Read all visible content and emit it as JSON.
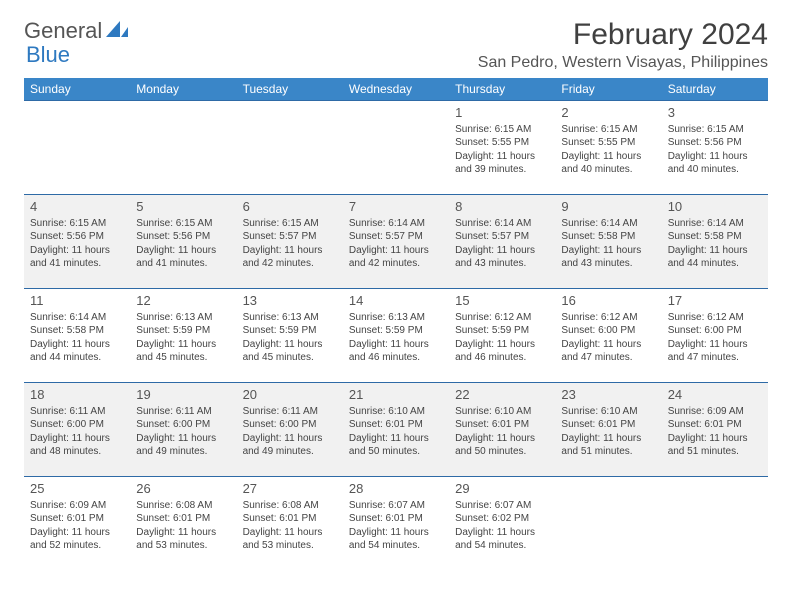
{
  "logo": {
    "part1": "General",
    "part2": "Blue",
    "color1": "#555555",
    "color2": "#2e79c0"
  },
  "title": "February 2024",
  "location": "San Pedro, Western Visayas, Philippines",
  "colors": {
    "header_bg": "#3a86c8",
    "header_text": "#ffffff",
    "row_border": "#2e6aa6",
    "alt_row_bg": "#f1f1f1",
    "text": "#444444"
  },
  "day_headers": [
    "Sunday",
    "Monday",
    "Tuesday",
    "Wednesday",
    "Thursday",
    "Friday",
    "Saturday"
  ],
  "weeks": [
    {
      "alt": false,
      "cells": [
        null,
        null,
        null,
        null,
        {
          "day": "1",
          "sunrise": "6:15 AM",
          "sunset": "5:55 PM",
          "daylight": "11 hours and 39 minutes."
        },
        {
          "day": "2",
          "sunrise": "6:15 AM",
          "sunset": "5:55 PM",
          "daylight": "11 hours and 40 minutes."
        },
        {
          "day": "3",
          "sunrise": "6:15 AM",
          "sunset": "5:56 PM",
          "daylight": "11 hours and 40 minutes."
        }
      ]
    },
    {
      "alt": true,
      "cells": [
        {
          "day": "4",
          "sunrise": "6:15 AM",
          "sunset": "5:56 PM",
          "daylight": "11 hours and 41 minutes."
        },
        {
          "day": "5",
          "sunrise": "6:15 AM",
          "sunset": "5:56 PM",
          "daylight": "11 hours and 41 minutes."
        },
        {
          "day": "6",
          "sunrise": "6:15 AM",
          "sunset": "5:57 PM",
          "daylight": "11 hours and 42 minutes."
        },
        {
          "day": "7",
          "sunrise": "6:14 AM",
          "sunset": "5:57 PM",
          "daylight": "11 hours and 42 minutes."
        },
        {
          "day": "8",
          "sunrise": "6:14 AM",
          "sunset": "5:57 PM",
          "daylight": "11 hours and 43 minutes."
        },
        {
          "day": "9",
          "sunrise": "6:14 AM",
          "sunset": "5:58 PM",
          "daylight": "11 hours and 43 minutes."
        },
        {
          "day": "10",
          "sunrise": "6:14 AM",
          "sunset": "5:58 PM",
          "daylight": "11 hours and 44 minutes."
        }
      ]
    },
    {
      "alt": false,
      "cells": [
        {
          "day": "11",
          "sunrise": "6:14 AM",
          "sunset": "5:58 PM",
          "daylight": "11 hours and 44 minutes."
        },
        {
          "day": "12",
          "sunrise": "6:13 AM",
          "sunset": "5:59 PM",
          "daylight": "11 hours and 45 minutes."
        },
        {
          "day": "13",
          "sunrise": "6:13 AM",
          "sunset": "5:59 PM",
          "daylight": "11 hours and 45 minutes."
        },
        {
          "day": "14",
          "sunrise": "6:13 AM",
          "sunset": "5:59 PM",
          "daylight": "11 hours and 46 minutes."
        },
        {
          "day": "15",
          "sunrise": "6:12 AM",
          "sunset": "5:59 PM",
          "daylight": "11 hours and 46 minutes."
        },
        {
          "day": "16",
          "sunrise": "6:12 AM",
          "sunset": "6:00 PM",
          "daylight": "11 hours and 47 minutes."
        },
        {
          "day": "17",
          "sunrise": "6:12 AM",
          "sunset": "6:00 PM",
          "daylight": "11 hours and 47 minutes."
        }
      ]
    },
    {
      "alt": true,
      "cells": [
        {
          "day": "18",
          "sunrise": "6:11 AM",
          "sunset": "6:00 PM",
          "daylight": "11 hours and 48 minutes."
        },
        {
          "day": "19",
          "sunrise": "6:11 AM",
          "sunset": "6:00 PM",
          "daylight": "11 hours and 49 minutes."
        },
        {
          "day": "20",
          "sunrise": "6:11 AM",
          "sunset": "6:00 PM",
          "daylight": "11 hours and 49 minutes."
        },
        {
          "day": "21",
          "sunrise": "6:10 AM",
          "sunset": "6:01 PM",
          "daylight": "11 hours and 50 minutes."
        },
        {
          "day": "22",
          "sunrise": "6:10 AM",
          "sunset": "6:01 PM",
          "daylight": "11 hours and 50 minutes."
        },
        {
          "day": "23",
          "sunrise": "6:10 AM",
          "sunset": "6:01 PM",
          "daylight": "11 hours and 51 minutes."
        },
        {
          "day": "24",
          "sunrise": "6:09 AM",
          "sunset": "6:01 PM",
          "daylight": "11 hours and 51 minutes."
        }
      ]
    },
    {
      "alt": false,
      "cells": [
        {
          "day": "25",
          "sunrise": "6:09 AM",
          "sunset": "6:01 PM",
          "daylight": "11 hours and 52 minutes."
        },
        {
          "day": "26",
          "sunrise": "6:08 AM",
          "sunset": "6:01 PM",
          "daylight": "11 hours and 53 minutes."
        },
        {
          "day": "27",
          "sunrise": "6:08 AM",
          "sunset": "6:01 PM",
          "daylight": "11 hours and 53 minutes."
        },
        {
          "day": "28",
          "sunrise": "6:07 AM",
          "sunset": "6:01 PM",
          "daylight": "11 hours and 54 minutes."
        },
        {
          "day": "29",
          "sunrise": "6:07 AM",
          "sunset": "6:02 PM",
          "daylight": "11 hours and 54 minutes."
        },
        null,
        null
      ]
    }
  ],
  "labels": {
    "sunrise": "Sunrise:",
    "sunset": "Sunset:",
    "daylight": "Daylight:"
  }
}
